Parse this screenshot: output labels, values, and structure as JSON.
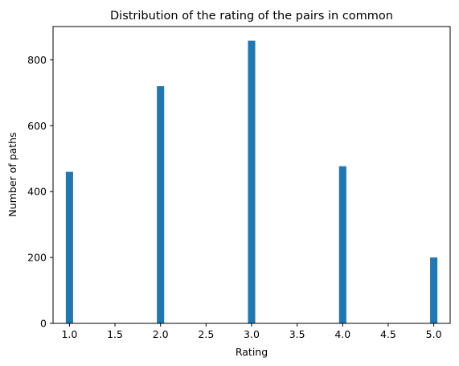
{
  "chart_data": {
    "type": "bar",
    "title": "Distribution of the rating of the pairs in common",
    "xlabel": "Rating",
    "ylabel": "Number of paths",
    "x": [
      1.0,
      2.0,
      3.0,
      4.0,
      5.0
    ],
    "values": [
      460,
      720,
      858,
      477,
      200
    ],
    "xlim": [
      0.82,
      5.18
    ],
    "ylim": [
      0,
      901
    ],
    "bar_width": 0.08,
    "x_ticks": [
      1.0,
      1.5,
      2.0,
      2.5,
      3.0,
      3.5,
      4.0,
      4.5,
      5.0
    ],
    "x_tick_labels": [
      "1.0",
      "1.5",
      "2.0",
      "2.5",
      "3.0",
      "3.5",
      "4.0",
      "4.5",
      "5.0"
    ],
    "y_ticks": [
      0,
      200,
      400,
      600,
      800
    ],
    "y_tick_labels": [
      "0",
      "200",
      "400",
      "600",
      "800"
    ],
    "grid": false,
    "legend": "none",
    "bar_color": "#1f77b4"
  }
}
